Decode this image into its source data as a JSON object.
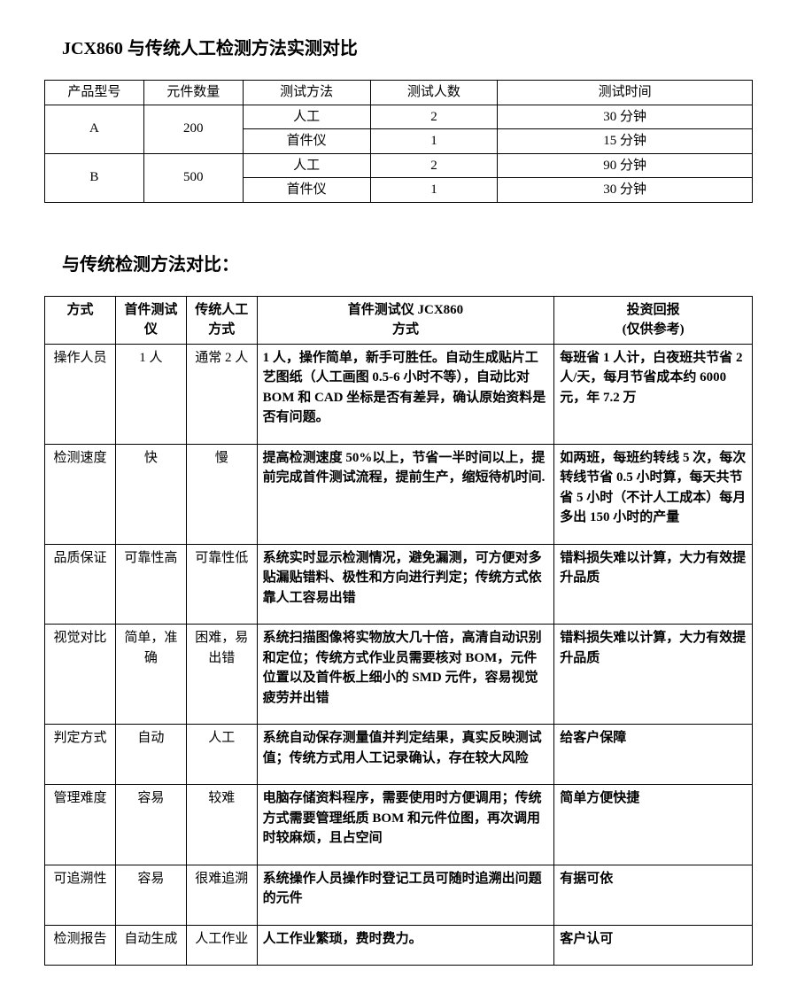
{
  "heading1": "JCX860 与传统人工检测方法实测对比",
  "table1": {
    "headers": [
      "产品型号",
      "元件数量",
      "测试方法",
      "测试人数",
      "测试时间"
    ],
    "groups": [
      {
        "model": "A",
        "count": "200",
        "rows": [
          {
            "method": "人工",
            "people": "2",
            "time": "30 分钟"
          },
          {
            "method": "首件仪",
            "people": "1",
            "time": "15 分钟"
          }
        ]
      },
      {
        "model": "B",
        "count": "500",
        "rows": [
          {
            "method": "人工",
            "people": "2",
            "time": "90 分钟"
          },
          {
            "method": "首件仪",
            "people": "1",
            "time": "30 分钟"
          }
        ]
      }
    ]
  },
  "heading2": "与传统检测方法对比：",
  "table2": {
    "headers": [
      "方式",
      "首件测试仪",
      "传统人工方式",
      "首件测试仪 JCX860\n方式",
      "投资回报\n(仅供参考)"
    ],
    "rows": [
      {
        "aspect": "操作人员",
        "tester": "1 人",
        "manual": "通常 2 人",
        "detail": "1 人，操作简单，新手可胜任。自动生成贴片工艺图纸（人工画图 0.5-6 小时不等），自动比对 BOM 和 CAD 坐标是否有差异，确认原始资料是否有问题。",
        "roi": "每班省 1 人计，白夜班共节省 2 人/天，每月节省成本约 6000 元，年 7.2 万"
      },
      {
        "aspect": "检测速度",
        "tester": "快",
        "manual": "慢",
        "detail": "提高检测速度 50%以上，节省一半时间以上，提前完成首件测试流程，提前生产，缩短待机时间.",
        "roi": "如两班，每班约转线 5 次，每次转线节省 0.5 小时算，每天共节省 5 小时（不计人工成本）每月多出 150 小时的产量"
      },
      {
        "aspect": "品质保证",
        "tester": "可靠性高",
        "manual": "可靠性低",
        "detail": "系统实时显示检测情况，避免漏测，可方便对多贴漏贴错料、极性和方向进行判定；传统方式依靠人工容易出错",
        "roi": "错料损失难以计算，大力有效提升品质"
      },
      {
        "aspect": "视觉对比",
        "tester": "简单，准确",
        "manual": "困难，易出错",
        "detail": "系统扫描图像将实物放大几十倍，高清自动识别和定位；传统方式作业员需要核对 BOM，元件位置以及首件板上细小的 SMD 元件，容易视觉疲劳并出错",
        "roi": "错料损失难以计算，大力有效提升品质"
      },
      {
        "aspect": "判定方式",
        "tester": "自动",
        "manual": "人工",
        "detail": "系统自动保存测量值并判定结果，真实反映测试值；传统方式用人工记录确认，存在较大风险",
        "roi": "给客户保障"
      },
      {
        "aspect": "管理难度",
        "tester": "容易",
        "manual": "较难",
        "detail": "电脑存储资料程序，需要使用时方便调用；传统方式需要管理纸质 BOM 和元件位图，再次调用时较麻烦，且占空间",
        "roi": "简单方便快捷"
      },
      {
        "aspect": "可追溯性",
        "tester": "容易",
        "manual": "很难追溯",
        "detail": "系统操作人员操作时登记工员可随时追溯出问题的元件",
        "roi": "有据可依"
      },
      {
        "aspect": "检测报告",
        "tester": "自动生成",
        "manual": "人工作业",
        "detail": "人工作业繁琐，费时费力。",
        "roi": "客户认可"
      }
    ]
  }
}
